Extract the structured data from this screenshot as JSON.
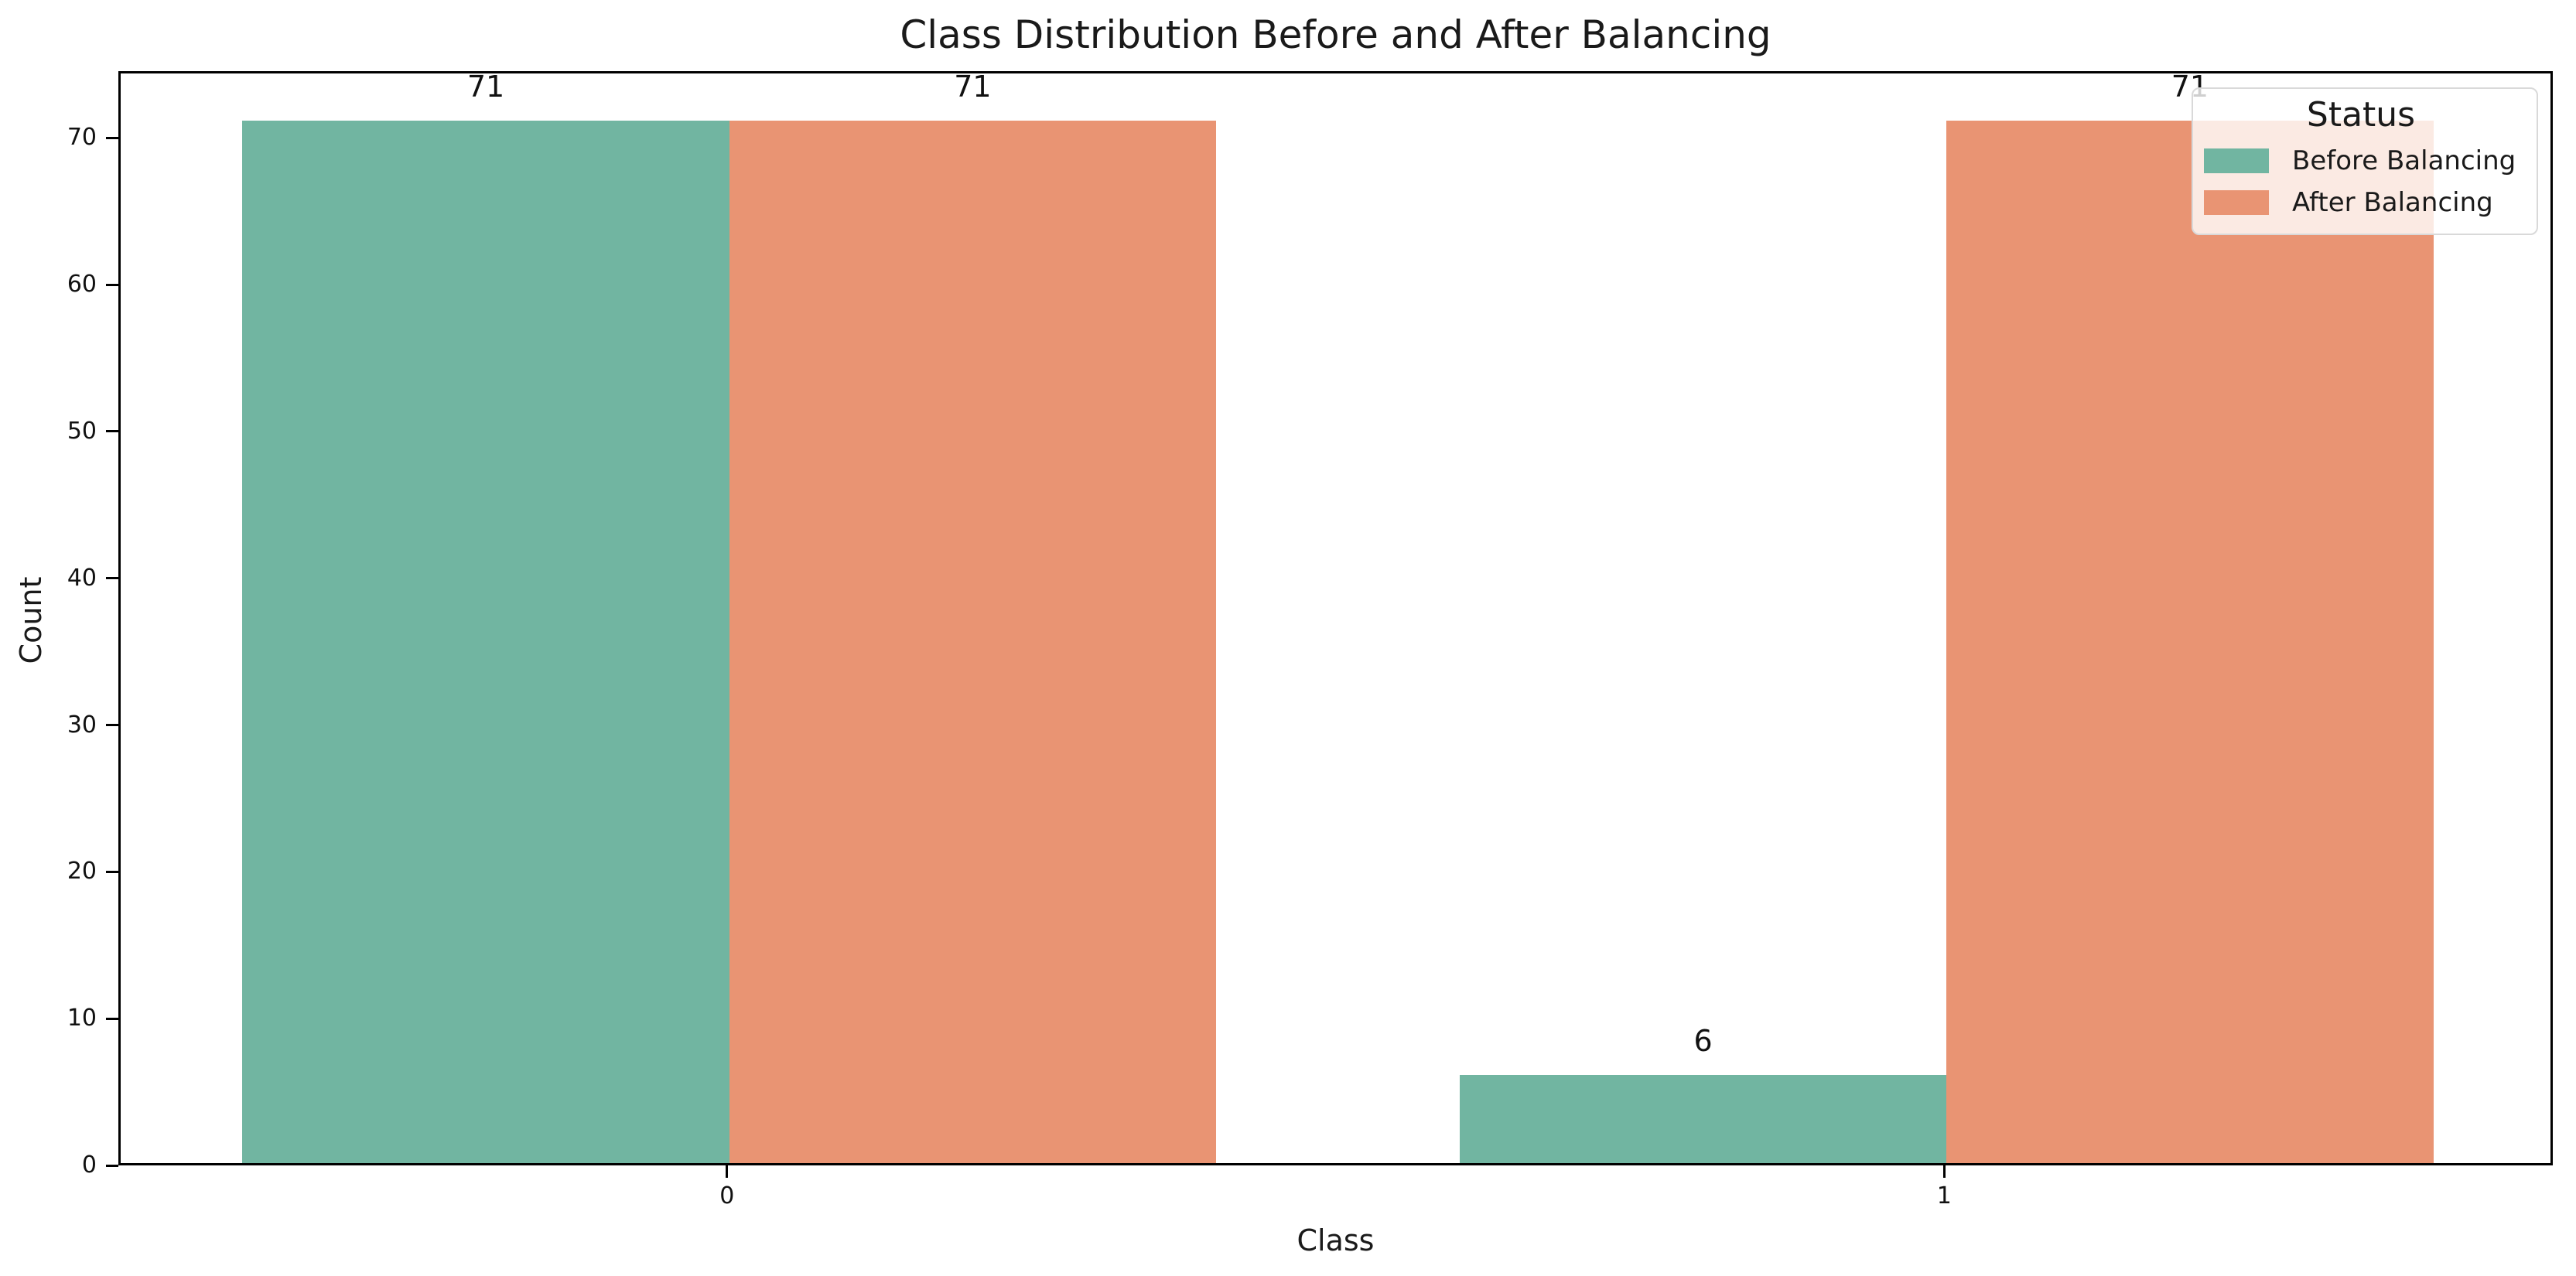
{
  "chart_data": {
    "type": "bar",
    "title": "Class Distribution Before and After Balancing",
    "xlabel": "Class",
    "ylabel": "Count",
    "categories": [
      "0",
      "1"
    ],
    "series": [
      {
        "name": "Before Balancing",
        "color": "#71b5a1",
        "values": [
          71,
          6
        ]
      },
      {
        "name": "After Balancing",
        "color": "#e99473",
        "values": [
          71,
          71
        ]
      }
    ],
    "bar_value_labels": [
      [
        "71",
        "6"
      ],
      [
        "71",
        "71"
      ]
    ],
    "yticks": [
      "0",
      "10",
      "20",
      "30",
      "40",
      "50",
      "60",
      "70"
    ],
    "ylim": [
      0,
      74.55
    ],
    "grid": false,
    "legend": {
      "title": "Status",
      "position": "upper right",
      "entries": [
        "Before Balancing",
        "After Balancing"
      ]
    },
    "colors": {
      "before": "#71b5a1",
      "after": "#e99473",
      "spine": "#000000",
      "text": "#1a1a1a",
      "legend_border": "#d9d9d9"
    }
  }
}
